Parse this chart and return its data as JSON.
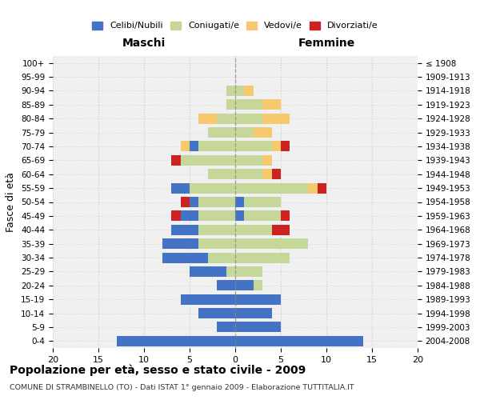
{
  "age_groups": [
    "0-4",
    "5-9",
    "10-14",
    "15-19",
    "20-24",
    "25-29",
    "30-34",
    "35-39",
    "40-44",
    "45-49",
    "50-54",
    "55-59",
    "60-64",
    "65-69",
    "70-74",
    "75-79",
    "80-84",
    "85-89",
    "90-94",
    "95-99",
    "100+"
  ],
  "birth_years": [
    "2004-2008",
    "1999-2003",
    "1994-1998",
    "1989-1993",
    "1984-1988",
    "1979-1983",
    "1974-1978",
    "1969-1973",
    "1964-1968",
    "1959-1963",
    "1954-1958",
    "1949-1953",
    "1944-1948",
    "1939-1943",
    "1934-1938",
    "1929-1933",
    "1924-1928",
    "1919-1923",
    "1914-1918",
    "1909-1913",
    "≤ 1908"
  ],
  "males": {
    "celibi": [
      13,
      2,
      4,
      6,
      2,
      4,
      5,
      4,
      3,
      2,
      1,
      2,
      0,
      0,
      1,
      0,
      0,
      0,
      0,
      0,
      0
    ],
    "coniugati": [
      0,
      0,
      0,
      0,
      0,
      1,
      3,
      4,
      4,
      4,
      4,
      5,
      3,
      6,
      4,
      3,
      2,
      1,
      1,
      0,
      0
    ],
    "vedovi": [
      0,
      0,
      0,
      0,
      0,
      0,
      0,
      0,
      0,
      0,
      0,
      0,
      0,
      0,
      1,
      0,
      2,
      0,
      0,
      0,
      0
    ],
    "divorziati": [
      0,
      0,
      0,
      0,
      0,
      0,
      0,
      0,
      0,
      1,
      1,
      0,
      0,
      1,
      0,
      0,
      0,
      0,
      0,
      0,
      0
    ]
  },
  "females": {
    "nubili": [
      14,
      5,
      4,
      5,
      2,
      0,
      0,
      0,
      0,
      1,
      1,
      0,
      0,
      0,
      0,
      0,
      0,
      0,
      0,
      0,
      0
    ],
    "coniugate": [
      0,
      0,
      0,
      0,
      1,
      3,
      6,
      8,
      4,
      4,
      4,
      8,
      3,
      3,
      4,
      2,
      3,
      3,
      1,
      0,
      0
    ],
    "vedove": [
      0,
      0,
      0,
      0,
      0,
      0,
      0,
      0,
      0,
      0,
      0,
      1,
      1,
      1,
      1,
      2,
      3,
      2,
      1,
      0,
      0
    ],
    "divorziate": [
      0,
      0,
      0,
      0,
      0,
      0,
      0,
      0,
      2,
      1,
      0,
      1,
      1,
      0,
      1,
      0,
      0,
      0,
      0,
      0,
      0
    ]
  },
  "colors": {
    "celibi_nubili": "#4472C4",
    "coniugati": "#c5d89a",
    "vedovi": "#f6c96e",
    "divorziati": "#cc2222"
  },
  "xlim": 20,
  "title": "Popolazione per età, sesso e stato civile - 2009",
  "subtitle": "COMUNE DI STRAMBINELLO (TO) - Dati ISTAT 1° gennaio 2009 - Elaborazione TUTTITALIA.IT",
  "ylabel_left": "Fasce di età",
  "xlabel_left": "Maschi",
  "xlabel_right": "Femmine",
  "bg_color": "#f0f0f0"
}
